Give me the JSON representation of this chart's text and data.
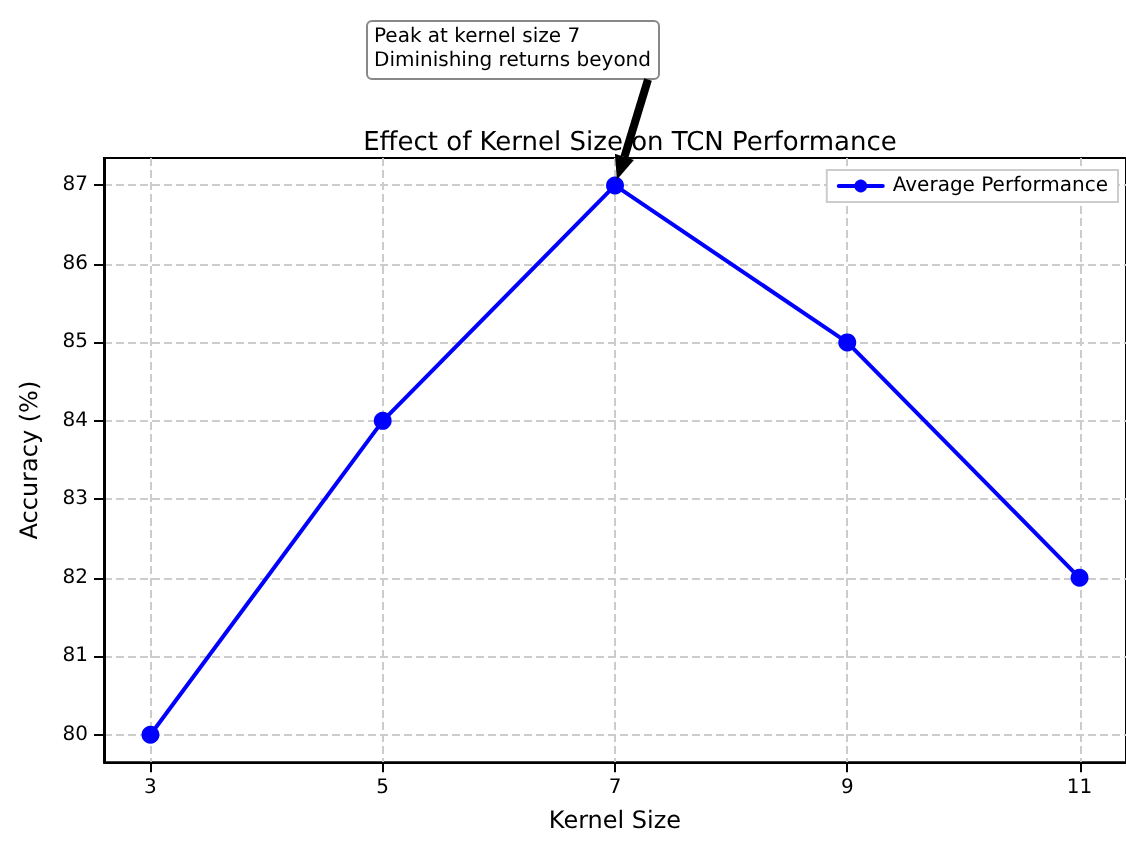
{
  "chart_data": {
    "type": "line",
    "title": "Effect of Kernel Size on TCN Performance",
    "xlabel": "Kernel Size",
    "ylabel": "Accuracy (%)",
    "x": [
      3,
      5,
      7,
      9,
      11
    ],
    "series": [
      {
        "name": "Average Performance",
        "color": "#0000ff",
        "values": [
          80,
          84,
          87,
          85,
          82
        ]
      }
    ],
    "xlim": [
      2.6,
      11.4
    ],
    "xticks": [
      3,
      5,
      7,
      9,
      11
    ],
    "ylim": [
      79.65,
      87.35
    ],
    "yticks": [
      80,
      81,
      82,
      83,
      84,
      85,
      86,
      87
    ],
    "grid": true,
    "legend": "top right",
    "marker": "circle",
    "line_style": "solid",
    "annotations": [
      "Peak at kernel size 7\nDiminishing returns beyond"
    ]
  }
}
